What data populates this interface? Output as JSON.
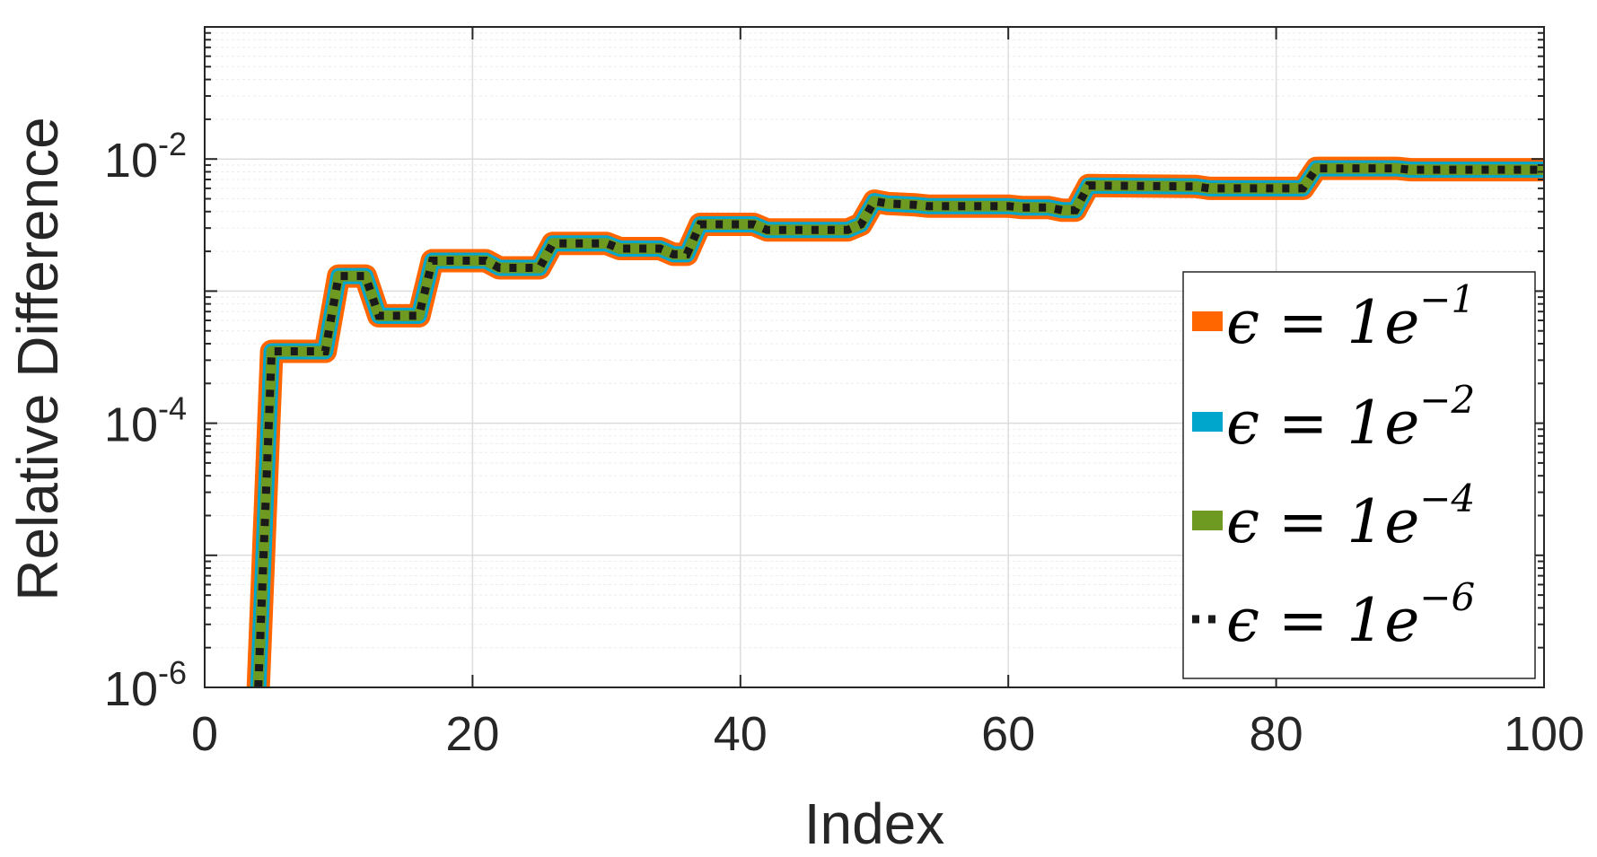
{
  "chart_data": {
    "type": "line",
    "xlabel": "Index",
    "ylabel": "Relative Difference",
    "xlim": [
      0,
      100
    ],
    "ylim": [
      1e-06,
      0.1
    ],
    "yscale": "log",
    "grid": true,
    "legend_position": "lower-right",
    "xticks": [
      {
        "value": 0,
        "label": "0"
      },
      {
        "value": 20,
        "label": "20"
      },
      {
        "value": 40,
        "label": "40"
      },
      {
        "value": 60,
        "label": "60"
      },
      {
        "value": 80,
        "label": "80"
      },
      {
        "value": 100,
        "label": "100"
      }
    ],
    "yticks": [
      {
        "value": 1e-06,
        "base": "10",
        "exp": "-6"
      },
      {
        "value": 0.0001,
        "base": "10",
        "exp": "-4"
      },
      {
        "value": 0.01,
        "base": "10",
        "exp": "-2"
      }
    ],
    "x": [
      4,
      5,
      9,
      10,
      12,
      13,
      16,
      17,
      21,
      22,
      25,
      26,
      30,
      31,
      34,
      35,
      36,
      37,
      41,
      42,
      48,
      49,
      50,
      51,
      53,
      54,
      60,
      61,
      63,
      64,
      65,
      66,
      74,
      75,
      80,
      81,
      82,
      83,
      89,
      90,
      100
    ],
    "series": [
      {
        "name": "ε = 1e−1",
        "legend_base": "ϵ = 1e",
        "legend_exp": "−1",
        "color": "#ff6600",
        "style": "solid",
        "values": [
          1e-06,
          0.00035,
          0.00035,
          0.0013,
          0.0013,
          0.00065,
          0.00065,
          0.0017,
          0.0017,
          0.0015,
          0.0015,
          0.0023,
          0.0023,
          0.0021,
          0.0021,
          0.0019,
          0.0019,
          0.0032,
          0.0032,
          0.0029,
          0.0029,
          0.0032,
          0.0048,
          0.0046,
          0.0045,
          0.0044,
          0.0044,
          0.0043,
          0.0043,
          0.0041,
          0.0041,
          0.0063,
          0.0062,
          0.006,
          0.006,
          0.006,
          0.006,
          0.0085,
          0.0085,
          0.0083,
          0.0083
        ]
      },
      {
        "name": "ε = 1e−2",
        "legend_base": "ϵ = 1e",
        "legend_exp": "−2",
        "color": "#00a6cc",
        "style": "solid",
        "values": [
          1e-06,
          0.00035,
          0.00035,
          0.0013,
          0.0013,
          0.00065,
          0.00065,
          0.0017,
          0.0017,
          0.0015,
          0.0015,
          0.0023,
          0.0023,
          0.0021,
          0.0021,
          0.0019,
          0.0019,
          0.0032,
          0.0032,
          0.0029,
          0.0029,
          0.0032,
          0.0048,
          0.0046,
          0.0045,
          0.0044,
          0.0044,
          0.0043,
          0.0043,
          0.0041,
          0.0041,
          0.0063,
          0.0062,
          0.006,
          0.006,
          0.006,
          0.006,
          0.0085,
          0.0085,
          0.0083,
          0.0083
        ]
      },
      {
        "name": "ε = 1e−4",
        "legend_base": "ϵ = 1e",
        "legend_exp": "−4",
        "color": "#6f9a22",
        "style": "solid",
        "values": [
          1e-06,
          0.00035,
          0.00035,
          0.0013,
          0.0013,
          0.00065,
          0.00065,
          0.0017,
          0.0017,
          0.0015,
          0.0015,
          0.0023,
          0.0023,
          0.0021,
          0.0021,
          0.0019,
          0.0019,
          0.0032,
          0.0032,
          0.0029,
          0.0029,
          0.0032,
          0.0048,
          0.0046,
          0.0045,
          0.0044,
          0.0044,
          0.0043,
          0.0043,
          0.0041,
          0.0041,
          0.0063,
          0.0062,
          0.006,
          0.006,
          0.006,
          0.006,
          0.0085,
          0.0085,
          0.0083,
          0.0083
        ]
      },
      {
        "name": "ε = 1e−6",
        "legend_base": "ϵ = 1e",
        "legend_exp": "−6",
        "color": "#1a1a1a",
        "style": "dotted",
        "values": [
          1e-06,
          0.00035,
          0.00035,
          0.0013,
          0.0013,
          0.00065,
          0.00065,
          0.0017,
          0.0017,
          0.0015,
          0.0015,
          0.0023,
          0.0023,
          0.0021,
          0.0021,
          0.0019,
          0.0019,
          0.0032,
          0.0032,
          0.0029,
          0.0029,
          0.0032,
          0.0048,
          0.0046,
          0.0045,
          0.0044,
          0.0044,
          0.0043,
          0.0043,
          0.0041,
          0.0041,
          0.0063,
          0.0062,
          0.006,
          0.006,
          0.006,
          0.006,
          0.0085,
          0.0085,
          0.0083,
          0.0083
        ]
      }
    ]
  }
}
